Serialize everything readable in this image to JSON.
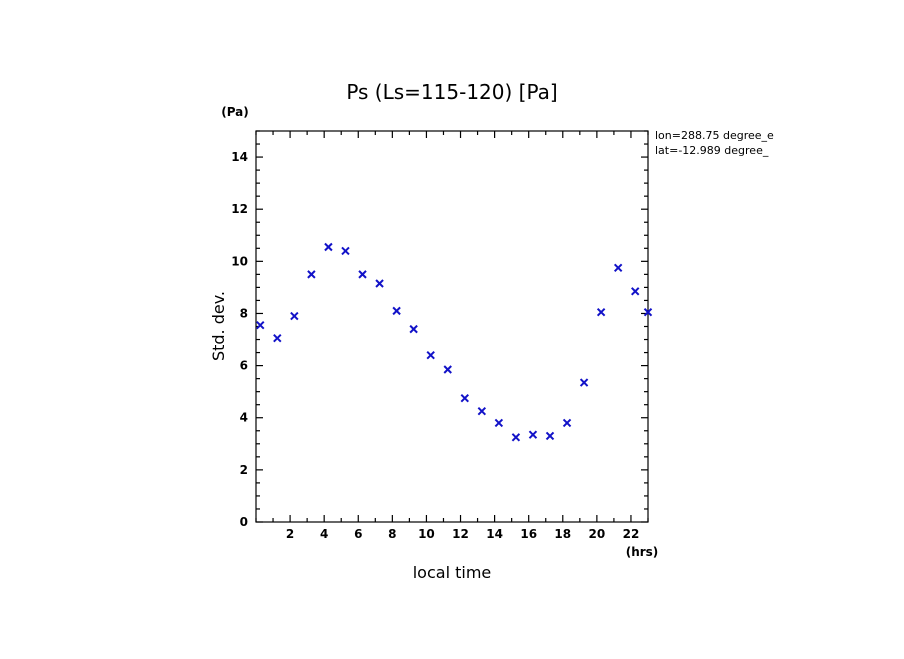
{
  "chart_data": {
    "type": "scatter",
    "title": "Ps (Ls=115-120) [Pa]",
    "xlabel": "local time",
    "ylabel": "Std. dev.",
    "x_unit": "(hrs)",
    "y_unit": "(Pa)",
    "annotations": [
      "lon=288.75 degree_e",
      "lat=-12.989 degree_"
    ],
    "xlim": [
      0,
      23
    ],
    "ylim": [
      0,
      15
    ],
    "x_ticks": [
      2,
      4,
      6,
      8,
      10,
      12,
      14,
      16,
      18,
      20,
      22
    ],
    "y_ticks": [
      0,
      2,
      4,
      6,
      8,
      10,
      12,
      14
    ],
    "marker": "x",
    "marker_color": "#1212c8",
    "grid": false,
    "series": [
      {
        "x": [
          0.25,
          1.25,
          2.25,
          3.25,
          4.25,
          5.25,
          6.25,
          7.25,
          8.25,
          9.25,
          10.25,
          11.25,
          12.25,
          13.25,
          14.25,
          15.25,
          16.25,
          17.25,
          18.25,
          19.25,
          20.25,
          21.25,
          22.25,
          23.0
        ],
        "y": [
          7.55,
          7.05,
          7.9,
          9.5,
          10.55,
          10.4,
          9.5,
          9.15,
          8.1,
          7.4,
          6.4,
          5.85,
          4.75,
          4.25,
          3.8,
          3.25,
          3.35,
          3.3,
          3.8,
          5.35,
          8.05,
          9.75,
          8.85,
          8.05
        ]
      }
    ]
  }
}
